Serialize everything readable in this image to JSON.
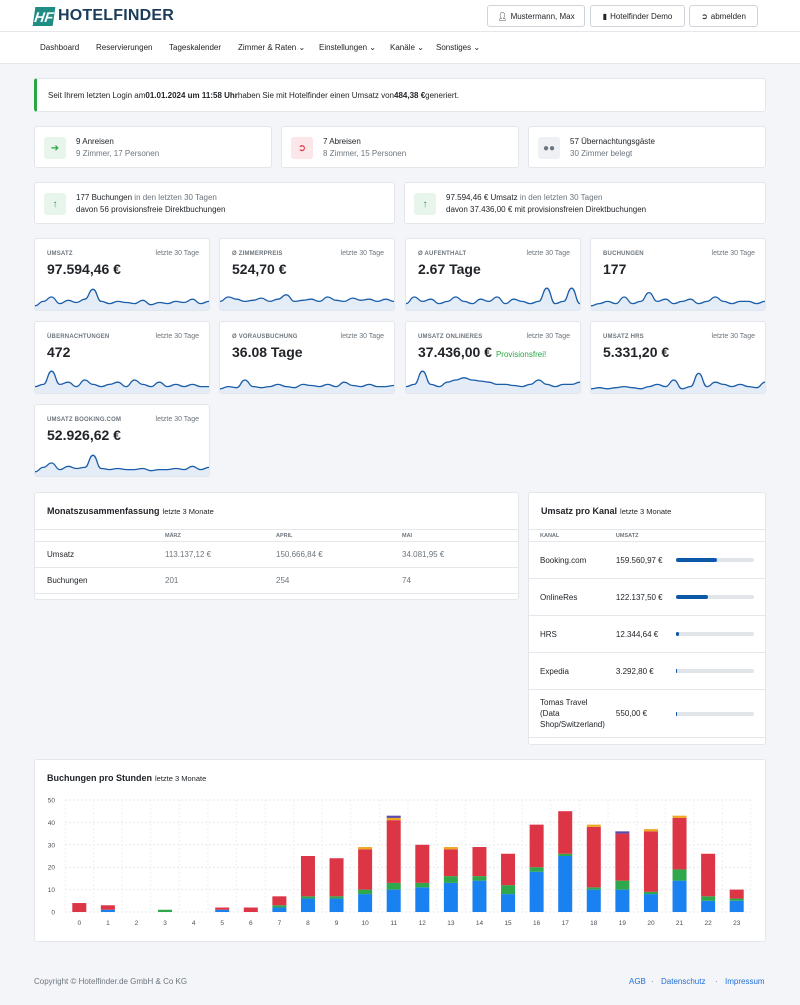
{
  "header": {
    "logo_mark": "HF",
    "logo_text": "HOTELFINDER",
    "user_label": "Mustermann, Max",
    "hotel_label": "Hotelfinder Demo",
    "logout_label": "abmelden"
  },
  "nav": [
    {
      "label": "Dashboard"
    },
    {
      "label": "Reservierungen"
    },
    {
      "label": "Tageskalender"
    },
    {
      "label": "Zimmer & Raten ⌄"
    },
    {
      "label": "Einstellungen ⌄"
    },
    {
      "label": "Kanäle ⌄"
    },
    {
      "label": "Sonstiges ⌄"
    }
  ],
  "alert": {
    "pre": "Seit Ihrem letzten Login am ",
    "date": "01.01.2024 um 11:58 Uhr",
    "mid": " haben Sie mit Hotelfinder einen Umsatz von ",
    "amount": "484,38 €",
    "post": " generiert."
  },
  "stats": [
    {
      "line1": "9 Anreisen",
      "line2": "9 Zimmer, 17 Personen",
      "icon": "sign-in-icon",
      "color": "#28a745"
    },
    {
      "line1": "7 Abreisen",
      "line2": "8 Zimmer, 15 Personen",
      "icon": "sign-out-icon",
      "color": "#dc3545"
    },
    {
      "line1": "57 Übernachtungsgäste",
      "line2": "30 Zimmer belegt",
      "icon": "users-icon",
      "color": "#6c757d"
    }
  ],
  "bookings_summary": {
    "a_strong": "177 Buchungen",
    "a_muted": " in den letzten 30 Tagen",
    "a_line2": "davon 56 provisionsfreie Direktbuchungen",
    "b_strong": "97.594,46 € Umsatz",
    "b_muted": " in den letzten 30 Tagen",
    "b_line2": "davon 37.436,00 € mit provisionsfreien Direktbuchungen"
  },
  "kpis": [
    {
      "label": "Umsatz",
      "period": "letzte 30 Tage",
      "value": "97.594,46 €",
      "extra": ""
    },
    {
      "label": "Ø Zimmerpreis",
      "period": "letzte 30 Tage",
      "value": "524,70 €",
      "extra": ""
    },
    {
      "label": "Ø Aufenthalt",
      "period": "letzte 30 Tage",
      "value": "2.67 Tage",
      "extra": ""
    },
    {
      "label": "Buchungen",
      "period": "letzte 30 Tage",
      "value": "177",
      "extra": ""
    },
    {
      "label": "Übernachtungen",
      "period": "letzte 30 Tage",
      "value": "472",
      "extra": ""
    },
    {
      "label": "Ø Vorausbuchung",
      "period": "letzte 30 Tage",
      "value": "36.08 Tage",
      "extra": ""
    },
    {
      "label": "Umsatz Onlineres",
      "period": "letzte 30 Tage",
      "value": "37.436,00 €",
      "extra": "Provisionsfrei!"
    },
    {
      "label": "Umsatz HRS",
      "period": "letzte 30 Tage",
      "value": "5.331,20 €",
      "extra": ""
    },
    {
      "label": "Umsatz Booking.com",
      "period": "letzte 30 Tage",
      "value": "52.926,62 €",
      "extra": ""
    }
  ],
  "monthly": {
    "title": "Monatszusammenfassung",
    "subtitle": "letzte 3 Monate",
    "columns": [
      "",
      "März",
      "April",
      "Mai"
    ],
    "rows": [
      {
        "label": "Umsatz",
        "values": [
          "113.137,12 €",
          "150.666,84 €",
          "34.081,95 €"
        ]
      },
      {
        "label": "Buchungen",
        "values": [
          "201",
          "254",
          "74"
        ]
      }
    ]
  },
  "channels": {
    "title": "Umsatz pro Kanal",
    "subtitle": "letzte 3 Monate",
    "columns": [
      "Kanal",
      "Umsatz"
    ],
    "rows": [
      {
        "name": "Booking.com",
        "amount": "159.560,97 €",
        "share": 0.53
      },
      {
        "name": "OnlineRes",
        "amount": "122.137,50 €",
        "share": 0.41
      },
      {
        "name": "HRS",
        "amount": "12.344,64 €",
        "share": 0.04
      },
      {
        "name": "Expedia",
        "amount": "3.292,80 €",
        "share": 0.01
      },
      {
        "name": "Tomas Travel (Data Shop/Switzerland)",
        "amount": "550,00 €",
        "share": 0.002
      }
    ]
  },
  "hourly": {
    "title": "Buchungen pro Stunden",
    "subtitle": "letzte 3 Monate"
  },
  "chart_data": {
    "type": "bar",
    "stacked": true,
    "categories": [
      "0",
      "1",
      "2",
      "3",
      "4",
      "5",
      "6",
      "7",
      "8",
      "9",
      "10",
      "11",
      "12",
      "13",
      "14",
      "15",
      "16",
      "17",
      "18",
      "19",
      "20",
      "21",
      "22",
      "23"
    ],
    "ylim": [
      0,
      50
    ],
    "yticks": [
      0,
      10,
      20,
      30,
      40,
      50
    ],
    "grid": true,
    "series": [
      {
        "color": "#1a82f0",
        "values": [
          0,
          1,
          0,
          0,
          0,
          1,
          0,
          2,
          6,
          6,
          8,
          10,
          11,
          13,
          14,
          8,
          18,
          25,
          10,
          10,
          8,
          14,
          5,
          5
        ]
      },
      {
        "color": "#2ea84a",
        "values": [
          0,
          0,
          0,
          1,
          0,
          0,
          0,
          1,
          1,
          1,
          2,
          3,
          2,
          3,
          2,
          4,
          2,
          1,
          1,
          4,
          1,
          5,
          2,
          1
        ]
      },
      {
        "color": "#dc3545",
        "values": [
          4,
          2,
          0,
          0,
          0,
          1,
          2,
          4,
          18,
          17,
          18,
          28,
          17,
          12,
          13,
          14,
          19,
          19,
          27,
          21,
          27,
          23,
          19,
          4
        ]
      },
      {
        "color": "#f0a724",
        "values": [
          0,
          0,
          0,
          0,
          0,
          0,
          0,
          0,
          0,
          0,
          1,
          1,
          0,
          1,
          0,
          0,
          0,
          0,
          1,
          0,
          1,
          1,
          0,
          0
        ]
      },
      {
        "color": "#5b4ba8",
        "values": [
          0,
          0,
          0,
          0,
          0,
          0,
          0,
          0,
          0,
          0,
          0,
          1,
          0,
          0,
          0,
          0,
          0,
          0,
          0,
          1,
          0,
          0,
          0,
          0
        ]
      }
    ]
  },
  "footer": {
    "copyright": "Copyright © Hotelfinder.de GmbH & Co KG",
    "links": [
      "AGB",
      "Datenschutz",
      "Impressum"
    ]
  },
  "colors": {
    "accent": "#1f8d84",
    "link": "#1f6fd6",
    "spark_line": "#1a5da8",
    "spark_fill": "#e3ecf7",
    "bar_fill": "#0d59a8"
  }
}
